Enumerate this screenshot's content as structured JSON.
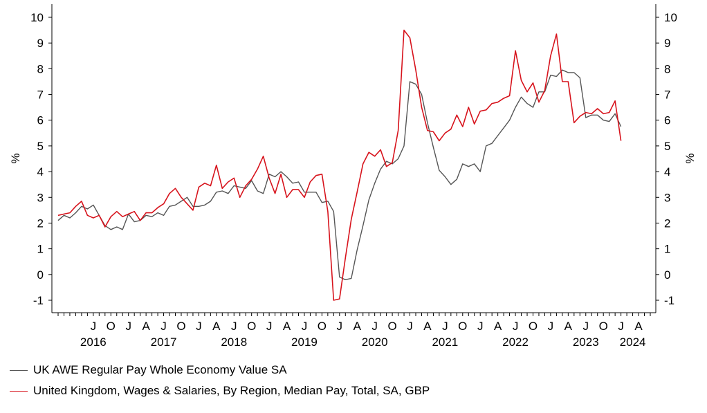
{
  "chart_data": {
    "type": "line",
    "title": "",
    "xlabel": "",
    "ylabel": "%",
    "ylabel_right": "%",
    "ylim": [
      -1,
      10
    ],
    "y_ticks": [
      "-1",
      "0",
      "1",
      "2",
      "3",
      "4",
      "5",
      "6",
      "7",
      "8",
      "9",
      "10"
    ],
    "x_start": "2016-01",
    "x_end": "2024-06",
    "month_ticks": [
      {
        "date": "2016-07",
        "label": "J"
      },
      {
        "date": "2016-10",
        "label": "O"
      },
      {
        "date": "2017-01",
        "label": "J"
      },
      {
        "date": "2017-04",
        "label": "A"
      },
      {
        "date": "2017-07",
        "label": "J"
      },
      {
        "date": "2017-10",
        "label": "O"
      },
      {
        "date": "2018-01",
        "label": "J"
      },
      {
        "date": "2018-04",
        "label": "A"
      },
      {
        "date": "2018-07",
        "label": "J"
      },
      {
        "date": "2018-10",
        "label": "O"
      },
      {
        "date": "2019-01",
        "label": "J"
      },
      {
        "date": "2019-04",
        "label": "A"
      },
      {
        "date": "2019-07",
        "label": "J"
      },
      {
        "date": "2019-10",
        "label": "O"
      },
      {
        "date": "2020-01",
        "label": "J"
      },
      {
        "date": "2020-04",
        "label": "A"
      },
      {
        "date": "2020-07",
        "label": "J"
      },
      {
        "date": "2020-10",
        "label": "O"
      },
      {
        "date": "2021-01",
        "label": "J"
      },
      {
        "date": "2021-04",
        "label": "A"
      },
      {
        "date": "2021-07",
        "label": "J"
      },
      {
        "date": "2021-10",
        "label": "O"
      },
      {
        "date": "2022-01",
        "label": "J"
      },
      {
        "date": "2022-04",
        "label": "A"
      },
      {
        "date": "2022-07",
        "label": "J"
      },
      {
        "date": "2022-10",
        "label": "O"
      },
      {
        "date": "2023-01",
        "label": "J"
      },
      {
        "date": "2023-04",
        "label": "A"
      },
      {
        "date": "2023-07",
        "label": "J"
      },
      {
        "date": "2023-10",
        "label": "O"
      },
      {
        "date": "2024-01",
        "label": "J"
      },
      {
        "date": "2024-04",
        "label": "A"
      }
    ],
    "year_labels": [
      {
        "label": "2016",
        "date": "2016-07"
      },
      {
        "label": "2017",
        "date": "2017-07"
      },
      {
        "label": "2018",
        "date": "2018-07"
      },
      {
        "label": "2019",
        "date": "2019-07"
      },
      {
        "label": "2020",
        "date": "2020-07"
      },
      {
        "label": "2021",
        "date": "2021-07"
      },
      {
        "label": "2022",
        "date": "2022-07"
      },
      {
        "label": "2023",
        "date": "2023-07"
      },
      {
        "label": "2024",
        "date": "2024-03"
      }
    ],
    "series": [
      {
        "name": "UK AWE Regular Pay Whole Economy Value SA",
        "color": "#555555",
        "start": "2016-01",
        "values": [
          2.1,
          2.3,
          2.2,
          2.4,
          2.65,
          2.55,
          2.7,
          2.3,
          1.9,
          1.75,
          1.85,
          1.75,
          2.35,
          2.05,
          2.1,
          2.3,
          2.25,
          2.4,
          2.3,
          2.65,
          2.7,
          2.85,
          3.0,
          2.65,
          2.65,
          2.7,
          2.85,
          3.2,
          3.25,
          3.15,
          3.45,
          3.4,
          3.35,
          3.65,
          3.25,
          3.15,
          3.9,
          3.8,
          4.0,
          3.8,
          3.55,
          3.6,
          3.2,
          3.2,
          3.2,
          2.8,
          2.85,
          2.45,
          -0.1,
          -0.2,
          -0.15,
          0.95,
          1.9,
          2.9,
          3.55,
          4.1,
          4.4,
          4.3,
          4.5,
          5.0,
          7.5,
          7.4,
          7.0,
          5.9,
          4.95,
          4.05,
          3.8,
          3.5,
          3.7,
          4.3,
          4.2,
          4.3,
          4.0,
          5.0,
          5.1,
          5.4,
          5.7,
          6.0,
          6.5,
          6.9,
          6.65,
          6.5,
          7.1,
          7.1,
          7.75,
          7.7,
          7.95,
          7.85,
          7.85,
          7.65,
          6.1,
          6.2,
          6.2,
          6.0,
          5.95,
          6.25,
          5.75
        ]
      },
      {
        "name": "United Kingdom, Wages & Salaries, By Region, Median Pay, Total, SA, GBP",
        "color": "#d7131c",
        "start": "2016-01",
        "values": [
          2.3,
          2.35,
          2.4,
          2.65,
          2.85,
          2.3,
          2.2,
          2.3,
          1.85,
          2.25,
          2.45,
          2.25,
          2.35,
          2.45,
          2.1,
          2.4,
          2.4,
          2.6,
          2.75,
          3.15,
          3.35,
          3.0,
          2.75,
          2.5,
          3.4,
          3.55,
          3.45,
          4.25,
          3.35,
          3.6,
          3.75,
          3.0,
          3.45,
          3.7,
          4.1,
          4.6,
          3.75,
          3.15,
          3.9,
          3.0,
          3.3,
          3.3,
          3.0,
          3.6,
          3.85,
          3.9,
          2.45,
          -1.0,
          -0.95,
          0.65,
          2.15,
          3.2,
          4.3,
          4.75,
          4.6,
          4.85,
          4.2,
          4.35,
          5.6,
          9.5,
          9.2,
          7.95,
          6.5,
          5.6,
          5.55,
          5.2,
          5.5,
          5.65,
          6.2,
          5.75,
          6.5,
          5.85,
          6.35,
          6.4,
          6.65,
          6.7,
          6.85,
          6.95,
          8.7,
          7.55,
          7.1,
          7.45,
          6.7,
          7.15,
          8.5,
          9.35,
          7.5,
          7.5,
          5.9,
          6.15,
          6.3,
          6.25,
          6.45,
          6.25,
          6.3,
          6.75,
          5.2
        ]
      }
    ],
    "legend_position": "bottom-left",
    "grid": false
  }
}
